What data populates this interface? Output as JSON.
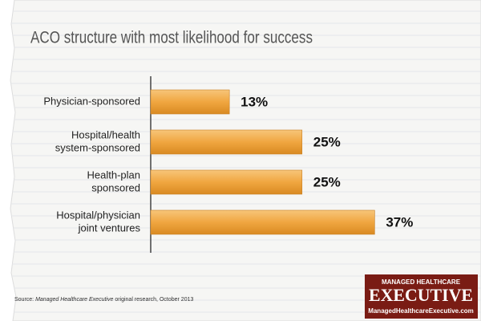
{
  "chart_data": {
    "type": "bar",
    "orientation": "horizontal",
    "title": "ACO structure with most likelihood for success",
    "categories": [
      [
        "Physician-sponsored"
      ],
      [
        "Hospital/health",
        "system-sponsored"
      ],
      [
        "Health-plan",
        "sponsored"
      ],
      [
        "Hospital/physician",
        "joint ventures"
      ]
    ],
    "values": [
      13,
      25,
      25,
      37
    ],
    "value_labels": [
      "13%",
      "25%",
      "25%",
      "37%"
    ],
    "color": "#f0a640",
    "source": [
      "Source:",
      "Managed Healthcare Executive",
      "original research, October 2013"
    ],
    "logo": {
      "top": "Managed Healthcare",
      "name": "Executive",
      "url": "ManagedHealthcareExecutive.com"
    }
  }
}
